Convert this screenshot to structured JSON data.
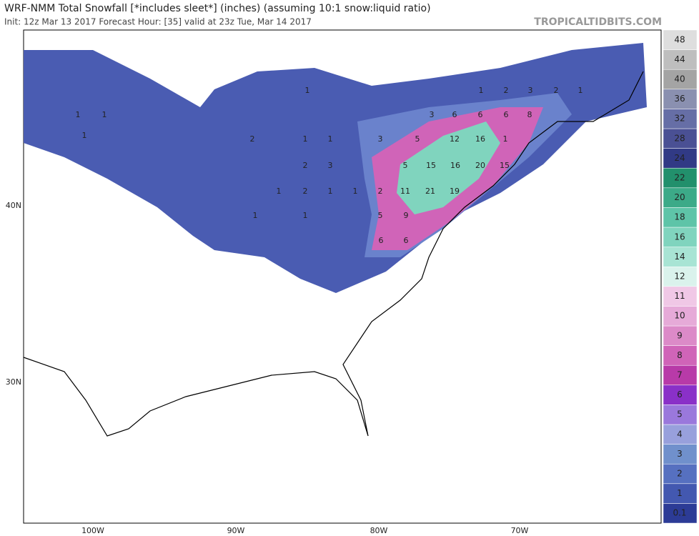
{
  "header": {
    "title": "WRF-NMM Total Snowfall [*includes sleet*] (inches) (assuming 10:1 snow:liquid ratio)",
    "subtitle": "Init: 12z Mar 13 2017   Forecast Hour: [35]   valid at 23z Tue, Mar 14 2017",
    "credit": "TROPICALTIDBITS.COM"
  },
  "axes": {
    "lat_labels": [
      "40N",
      "30N"
    ],
    "lon_labels": [
      "100W",
      "90W",
      "80W",
      "70W"
    ]
  },
  "colorbar": {
    "levels": [
      0.1,
      1,
      2,
      3,
      4,
      5,
      6,
      7,
      8,
      9,
      10,
      11,
      12,
      14,
      16,
      18,
      20,
      22,
      24,
      28,
      32,
      36,
      40,
      44,
      48
    ],
    "colors": [
      "#2c3b96",
      "#4358b0",
      "#5670c0",
      "#7090cc",
      "#98a0dc",
      "#9a78dc",
      "#8a30c8",
      "#b83aa8",
      "#d064b8",
      "#dc8ac8",
      "#e6aad8",
      "#f0c8e6",
      "#daf2ec",
      "#a8e4d4",
      "#80d4be",
      "#5ec4a8",
      "#3caa88",
      "#22906c",
      "#313a85",
      "#4a5094",
      "#666ea6",
      "#8a90b0",
      "#a4a4a4",
      "#bebebe",
      "#dedede"
    ]
  },
  "map_labels": [
    1,
    1,
    1,
    1,
    1,
    2,
    3,
    2,
    1,
    3,
    6,
    6,
    6,
    8,
    2,
    1,
    1,
    3,
    5,
    12,
    16,
    1,
    2,
    3,
    5,
    15,
    16,
    20,
    15,
    1,
    2,
    1,
    1,
    2,
    11,
    21,
    19,
    1,
    1,
    5,
    9,
    6,
    6
  ]
}
